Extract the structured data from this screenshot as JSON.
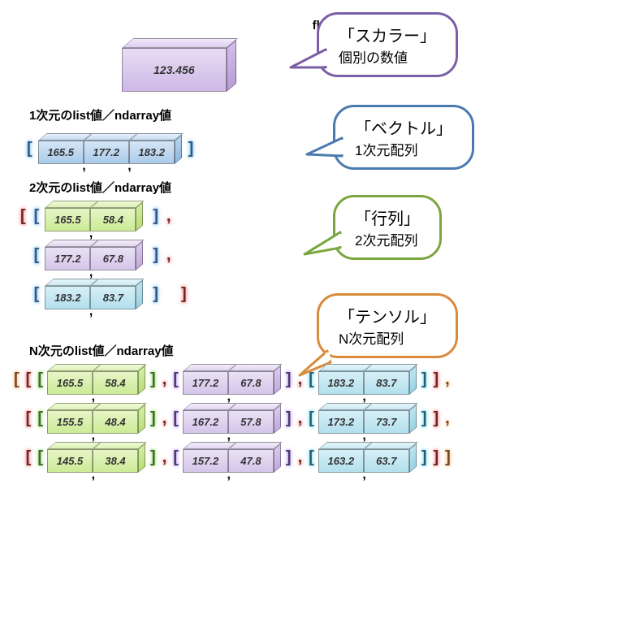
{
  "scalar": {
    "heading": "float値／ndarray値",
    "value": "123.456",
    "bubble_title": "「スカラー」",
    "bubble_sub": "個別の数値",
    "bubble_color": "#7a5fa6",
    "box_color": "purple"
  },
  "vector": {
    "heading": "1次元のlist値／ndarray値",
    "values": [
      "165.5",
      "177.2",
      "183.2"
    ],
    "bubble_title": "「ベクトル」",
    "bubble_sub": "1次元配列",
    "bubble_color": "#4a7ab0",
    "box_color": "blue"
  },
  "matrix": {
    "heading": "2次元のlist値／ndarray値",
    "rows": [
      {
        "values": [
          "165.5",
          "58.4"
        ],
        "color": "green"
      },
      {
        "values": [
          "177.2",
          "67.8"
        ],
        "color": "lpurple"
      },
      {
        "values": [
          "183.2",
          "83.7"
        ],
        "color": "cyan"
      }
    ],
    "bubble_title": "「行列」",
    "bubble_sub": "2次元配列",
    "bubble_color": "#7aa63f"
  },
  "tensor": {
    "heading": "N次元のlist値／ndarray値",
    "rows": [
      [
        {
          "values": [
            "165.5",
            "58.4"
          ],
          "color": "green"
        },
        {
          "values": [
            "177.2",
            "67.8"
          ],
          "color": "lpurple"
        },
        {
          "values": [
            "183.2",
            "83.7"
          ],
          "color": "cyan"
        }
      ],
      [
        {
          "values": [
            "155.5",
            "48.4"
          ],
          "color": "green"
        },
        {
          "values": [
            "167.2",
            "57.8"
          ],
          "color": "lpurple"
        },
        {
          "values": [
            "173.2",
            "73.7"
          ],
          "color": "cyan"
        }
      ],
      [
        {
          "values": [
            "145.5",
            "38.4"
          ],
          "color": "green"
        },
        {
          "values": [
            "157.2",
            "47.8"
          ],
          "color": "lpurple"
        },
        {
          "values": [
            "163.2",
            "63.7"
          ],
          "color": "cyan"
        }
      ]
    ],
    "bubble_title": "「テンソル」",
    "bubble_sub": "N次元配列",
    "bubble_color": "#d98a3a"
  },
  "outer_bracket_colors": {
    "vector": "blue",
    "matrix_outer": "red",
    "matrix_inner": "blue",
    "tensor_l1": "orange",
    "tensor_l2": "red",
    "tensor_green": "green",
    "tensor_purple": "purple",
    "tensor_cyan": "cyan"
  }
}
